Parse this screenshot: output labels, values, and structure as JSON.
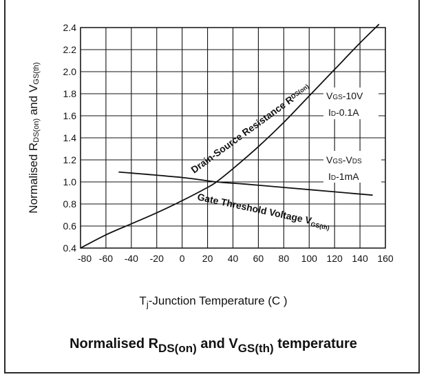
{
  "chart_data": {
    "type": "line",
    "title_main": "Normalised R",
    "title_rds_sub": "DS(on)",
    "title_and": " and V",
    "title_vgs_sub": "GS(th)",
    "title_end": " temperature",
    "ylabel_1": "Normalised R",
    "ylabel_sub1": "DS(on)",
    "ylabel_2": " and V",
    "ylabel_sub2": "GS(th)",
    "xlabel_pre": "T",
    "xlabel_sub": "j",
    "xlabel_post": "-Junction Temperature (C )",
    "xlim": [
      -80,
      160
    ],
    "ylim": [
      0.4,
      2.4
    ],
    "xticks": [
      "-80",
      "-60",
      "-40",
      "-20",
      "0",
      "20",
      "40",
      "60",
      "80",
      "100",
      "120",
      "140",
      "160"
    ],
    "yticks": [
      "0.4",
      "0.6",
      "0.8",
      "1.0",
      "1.2",
      "1.4",
      "1.6",
      "1.8",
      "2.0",
      "2.2",
      "2.4"
    ],
    "grid": true,
    "series": [
      {
        "name": "Drain-Source Resistance RDS(on)",
        "label_main": "Drain-Source Resistance R",
        "label_sub": "DS(on)",
        "x": [
          -80,
          -60,
          -40,
          -20,
          0,
          20,
          27,
          40,
          60,
          80,
          100,
          120,
          140,
          155
        ],
        "y": [
          0.4,
          0.52,
          0.62,
          0.72,
          0.83,
          0.95,
          1.0,
          1.12,
          1.32,
          1.54,
          1.78,
          2.02,
          2.26,
          2.43
        ]
      },
      {
        "name": "Gate Threshold Voltage VGS(th)",
        "label_main": "Gate Threshold Voltage V",
        "label_sub": "GS(th)",
        "x": [
          -50,
          0,
          27,
          50,
          100,
          150
        ],
        "y": [
          1.09,
          1.04,
          1.0,
          0.98,
          0.93,
          0.88
        ]
      }
    ],
    "conditions": {
      "rds": {
        "line1": "V",
        "line1_sub": "GS",
        "line1_rest": "-10V",
        "line2": "I",
        "line2_sub": "D",
        "line2_rest": "-0.1A"
      },
      "vgs": {
        "line1": "V",
        "line1_sub": "GS",
        "line1_rest": "-V",
        "line1_sub2": "DS",
        "line2": "I",
        "line2_sub": "D",
        "line2_rest": "-1mA"
      }
    }
  }
}
